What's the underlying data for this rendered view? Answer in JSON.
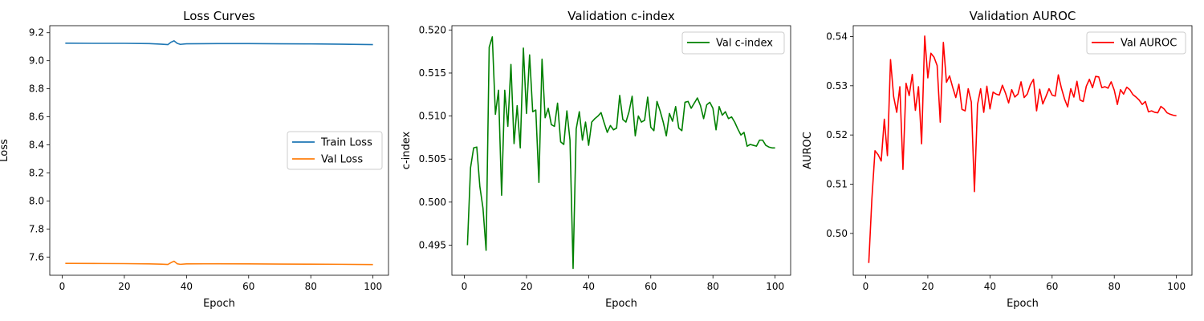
{
  "chart_data": [
    {
      "type": "line",
      "title": "Loss Curves",
      "xlabel": "Epoch",
      "ylabel": "Loss",
      "xlim": [
        -4,
        105
      ],
      "ylim": [
        7.47,
        9.25
      ],
      "xticks": [
        0,
        20,
        40,
        60,
        80,
        100
      ],
      "xtick_labels": [
        "0",
        "20",
        "40",
        "60",
        "80",
        "100"
      ],
      "yticks": [
        7.6,
        7.8,
        8.0,
        8.2,
        8.4,
        8.6,
        8.8,
        9.0,
        9.2
      ],
      "ytick_labels": [
        "7.6",
        "7.8",
        "8.0",
        "8.2",
        "8.4",
        "8.6",
        "8.8",
        "9.0",
        "9.2"
      ],
      "legend_position": "center-right",
      "series": [
        {
          "name": "Train Loss",
          "color": "#1f77b4",
          "x": [
            1,
            10,
            20,
            28,
            32,
            34,
            35,
            36,
            37,
            38,
            40,
            50,
            60,
            70,
            80,
            90,
            100
          ],
          "y": [
            9.125,
            9.124,
            9.124,
            9.122,
            9.118,
            9.115,
            9.132,
            9.142,
            9.124,
            9.117,
            9.121,
            9.122,
            9.122,
            9.121,
            9.12,
            9.118,
            9.115
          ]
        },
        {
          "name": "Val Loss",
          "color": "#ff7f0e",
          "x": [
            1,
            10,
            20,
            28,
            32,
            34,
            35,
            36,
            37,
            38,
            40,
            50,
            60,
            70,
            80,
            90,
            100
          ],
          "y": [
            7.555,
            7.554,
            7.553,
            7.551,
            7.549,
            7.547,
            7.56,
            7.57,
            7.552,
            7.548,
            7.551,
            7.552,
            7.551,
            7.55,
            7.549,
            7.548,
            7.546
          ]
        }
      ]
    },
    {
      "type": "line",
      "title": "Validation c-index",
      "xlabel": "Epoch",
      "ylabel": "c-index",
      "xlim": [
        -4,
        105
      ],
      "ylim": [
        0.4915,
        0.5205
      ],
      "xticks": [
        0,
        20,
        40,
        60,
        80,
        100
      ],
      "xtick_labels": [
        "0",
        "20",
        "40",
        "60",
        "80",
        "100"
      ],
      "yticks": [
        0.495,
        0.5,
        0.505,
        0.51,
        0.515,
        0.52
      ],
      "ytick_labels": [
        "0.495",
        "0.500",
        "0.505",
        "0.510",
        "0.515",
        "0.520"
      ],
      "legend_position": "top-right",
      "series": [
        {
          "name": "Val c-index",
          "color": "#008000",
          "x": [
            1,
            2,
            3,
            4,
            5,
            6,
            7,
            8,
            9,
            10,
            11,
            12,
            13,
            14,
            15,
            16,
            17,
            18,
            19,
            20,
            21,
            22,
            23,
            24,
            25,
            26,
            27,
            28,
            29,
            30,
            31,
            32,
            33,
            34,
            35,
            36,
            37,
            38,
            39,
            40,
            41,
            42,
            43,
            44,
            45,
            46,
            47,
            48,
            49,
            50,
            51,
            52,
            53,
            54,
            55,
            56,
            57,
            58,
            59,
            60,
            61,
            62,
            63,
            64,
            65,
            66,
            67,
            68,
            69,
            70,
            71,
            72,
            73,
            74,
            75,
            76,
            77,
            78,
            79,
            80,
            81,
            82,
            83,
            84,
            85,
            86,
            87,
            88,
            89,
            90,
            91,
            92,
            93,
            94,
            95,
            96,
            97,
            98,
            99,
            100
          ],
          "y": [
            0.495,
            0.504,
            0.5063,
            0.5064,
            0.5018,
            0.4993,
            0.4944,
            0.518,
            0.5192,
            0.5102,
            0.513,
            0.5008,
            0.513,
            0.5088,
            0.516,
            0.5068,
            0.5112,
            0.5063,
            0.5179,
            0.5103,
            0.5171,
            0.5105,
            0.5107,
            0.5023,
            0.5166,
            0.5098,
            0.5109,
            0.509,
            0.5088,
            0.5115,
            0.507,
            0.5067,
            0.5106,
            0.5072,
            0.4923,
            0.5085,
            0.5105,
            0.5072,
            0.5093,
            0.5066,
            0.5093,
            0.5097,
            0.51,
            0.5104,
            0.5092,
            0.5081,
            0.5089,
            0.5084,
            0.5086,
            0.5124,
            0.5096,
            0.5093,
            0.5105,
            0.5123,
            0.5077,
            0.51,
            0.5093,
            0.5095,
            0.5122,
            0.5087,
            0.5083,
            0.5117,
            0.5106,
            0.5093,
            0.5077,
            0.5103,
            0.5094,
            0.5111,
            0.5086,
            0.5083,
            0.5116,
            0.5117,
            0.5109,
            0.5115,
            0.5121,
            0.5112,
            0.5097,
            0.5113,
            0.5116,
            0.5109,
            0.5084,
            0.5111,
            0.5101,
            0.5105,
            0.5097,
            0.5099,
            0.5093,
            0.5085,
            0.5078,
            0.5081,
            0.5065,
            0.5067,
            0.5066,
            0.5065,
            0.5072,
            0.5072,
            0.5066,
            0.5064,
            0.5063,
            0.5063
          ]
        }
      ]
    },
    {
      "type": "line",
      "title": "Validation AUROC",
      "xlabel": "Epoch",
      "ylabel": "AUROC",
      "xlim": [
        -4,
        105
      ],
      "ylim": [
        0.4915,
        0.5422
      ],
      "xticks": [
        0,
        20,
        40,
        60,
        80,
        100
      ],
      "xtick_labels": [
        "0",
        "20",
        "40",
        "60",
        "80",
        "100"
      ],
      "yticks": [
        0.5,
        0.51,
        0.52,
        0.53,
        0.54
      ],
      "ytick_labels": [
        "0.50",
        "0.51",
        "0.52",
        "0.53",
        "0.54"
      ],
      "legend_position": "top-right",
      "series": [
        {
          "name": "Val AUROC",
          "color": "#ff0000",
          "x": [
            1,
            2,
            3,
            4,
            5,
            6,
            7,
            8,
            9,
            10,
            11,
            12,
            13,
            14,
            15,
            16,
            17,
            18,
            19,
            20,
            21,
            22,
            23,
            24,
            25,
            26,
            27,
            28,
            29,
            30,
            31,
            32,
            33,
            34,
            35,
            36,
            37,
            38,
            39,
            40,
            41,
            42,
            43,
            44,
            45,
            46,
            47,
            48,
            49,
            50,
            51,
            52,
            53,
            54,
            55,
            56,
            57,
            58,
            59,
            60,
            61,
            62,
            63,
            64,
            65,
            66,
            67,
            68,
            69,
            70,
            71,
            72,
            73,
            74,
            75,
            76,
            77,
            78,
            79,
            80,
            81,
            82,
            83,
            84,
            85,
            86,
            87,
            88,
            89,
            90,
            91,
            92,
            93,
            94,
            95,
            96,
            97,
            98,
            99,
            100
          ],
          "y": [
            0.494,
            0.507,
            0.5168,
            0.516,
            0.5147,
            0.5232,
            0.5158,
            0.5353,
            0.5278,
            0.5246,
            0.5298,
            0.513,
            0.5305,
            0.528,
            0.5323,
            0.525,
            0.5298,
            0.5182,
            0.5401,
            0.5316,
            0.5366,
            0.5358,
            0.5341,
            0.5226,
            0.5388,
            0.5307,
            0.532,
            0.5297,
            0.5276,
            0.5303,
            0.5252,
            0.5249,
            0.5294,
            0.5267,
            0.5085,
            0.5262,
            0.5294,
            0.5246,
            0.5299,
            0.5253,
            0.5287,
            0.5283,
            0.5281,
            0.5301,
            0.5285,
            0.5265,
            0.5292,
            0.5277,
            0.5283,
            0.5308,
            0.5276,
            0.5283,
            0.5302,
            0.5313,
            0.5249,
            0.5293,
            0.5263,
            0.5278,
            0.5294,
            0.5281,
            0.5279,
            0.5322,
            0.5295,
            0.5273,
            0.5257,
            0.5294,
            0.5277,
            0.5309,
            0.5271,
            0.5268,
            0.5299,
            0.5313,
            0.5296,
            0.5319,
            0.5318,
            0.5296,
            0.5298,
            0.5295,
            0.5308,
            0.5291,
            0.5262,
            0.5292,
            0.5283,
            0.5297,
            0.5292,
            0.5282,
            0.5277,
            0.5271,
            0.5262,
            0.5268,
            0.5247,
            0.5249,
            0.5246,
            0.5245,
            0.5258,
            0.5253,
            0.5245,
            0.5242,
            0.524,
            0.5239
          ]
        }
      ]
    }
  ]
}
